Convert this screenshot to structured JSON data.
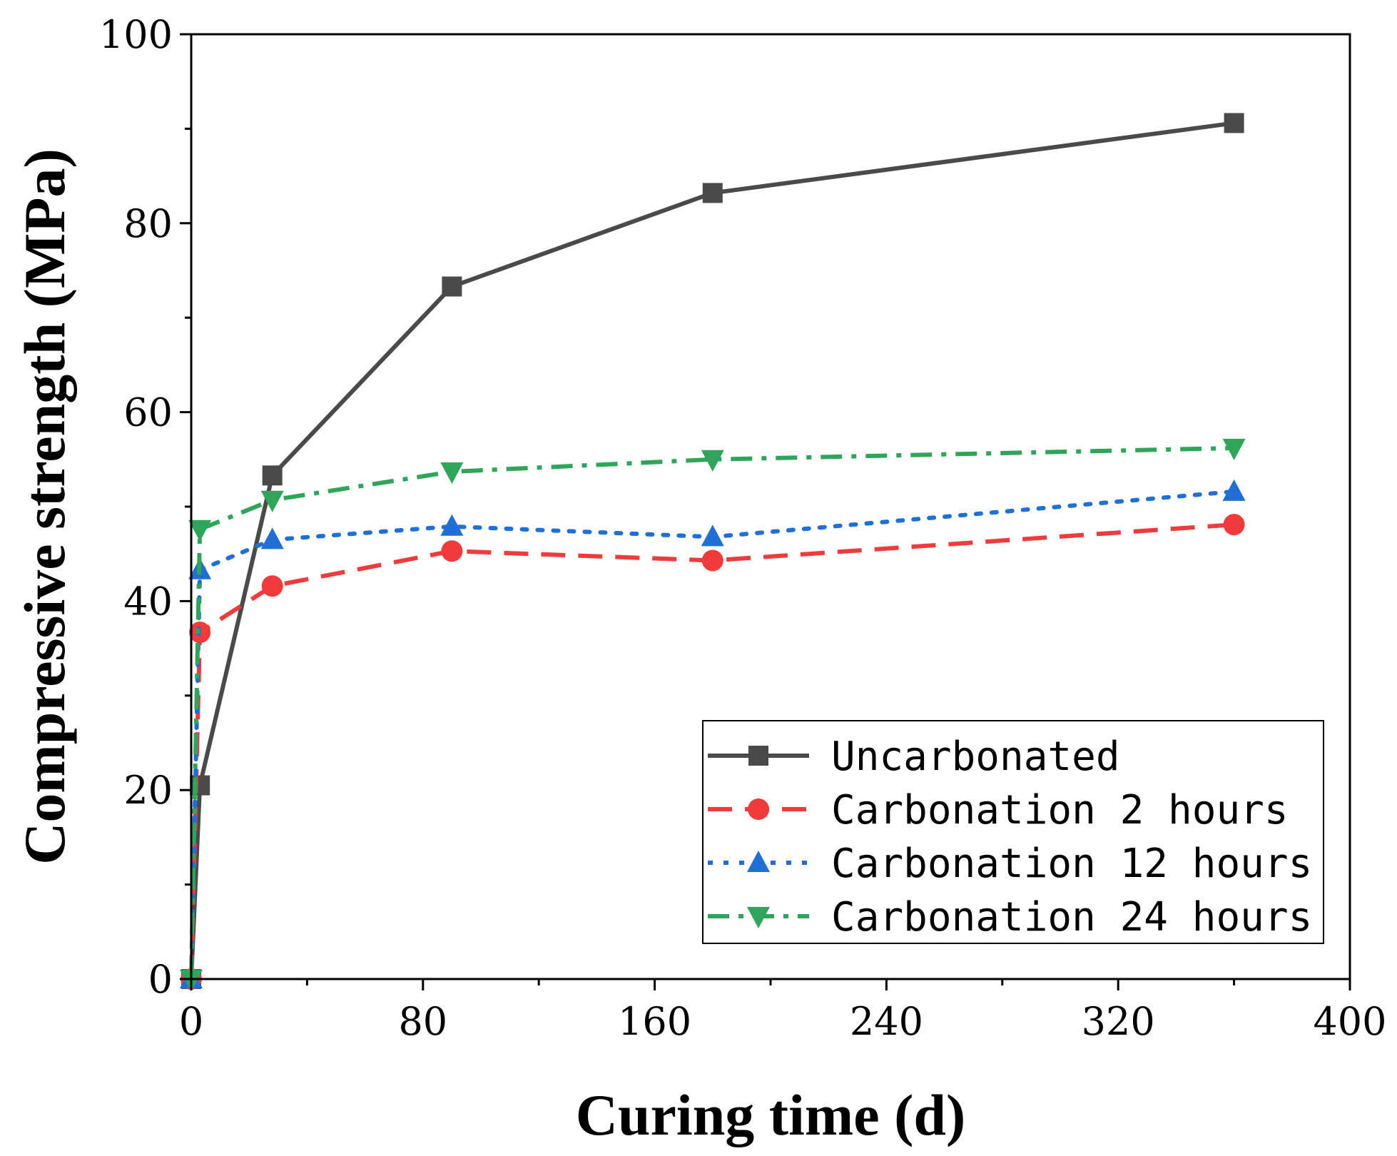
{
  "chart_data": {
    "type": "line",
    "title": "",
    "xlabel": "Curing time (d)",
    "ylabel": "Compressive strength (MPa)",
    "xlim": [
      0,
      400
    ],
    "ylim": [
      0,
      100
    ],
    "xticks": [
      0,
      80,
      160,
      240,
      320,
      400
    ],
    "yticks": [
      0,
      20,
      40,
      60,
      80,
      100
    ],
    "x_tick_labels": [
      "0",
      "80",
      "160",
      "240",
      "320",
      "400"
    ],
    "y_tick_labels": [
      "0",
      "20",
      "40",
      "60",
      "80",
      "100"
    ],
    "grid": false,
    "legend_position": "bottom-right",
    "series": [
      {
        "name": "Uncarbonated",
        "color": "#4a4a4a",
        "line_style": "solid",
        "marker": "square",
        "x": [
          0,
          3,
          28,
          90,
          180,
          360
        ],
        "y": [
          0,
          20.5,
          53.3,
          73.3,
          83.2,
          90.6
        ]
      },
      {
        "name": "Carbonation 2 hours",
        "color": "#ef3b3b",
        "line_style": "dashed",
        "marker": "circle",
        "x": [
          0,
          3,
          28,
          90,
          180,
          360
        ],
        "y": [
          0,
          36.7,
          41.6,
          45.3,
          44.3,
          48.1
        ]
      },
      {
        "name": "Carbonation 12 hours",
        "color": "#1f6fd6",
        "line_style": "dotted",
        "marker": "triangle-up",
        "x": [
          0,
          3,
          28,
          90,
          180,
          360
        ],
        "y": [
          0,
          43.3,
          46.5,
          47.9,
          46.8,
          51.6
        ]
      },
      {
        "name": "Carbonation 24 hours",
        "color": "#2fa55a",
        "line_style": "dash-dot",
        "marker": "triangle-down",
        "x": [
          0,
          3,
          28,
          90,
          180,
          360
        ],
        "y": [
          0,
          47.6,
          50.7,
          53.7,
          55.0,
          56.2
        ]
      }
    ]
  }
}
